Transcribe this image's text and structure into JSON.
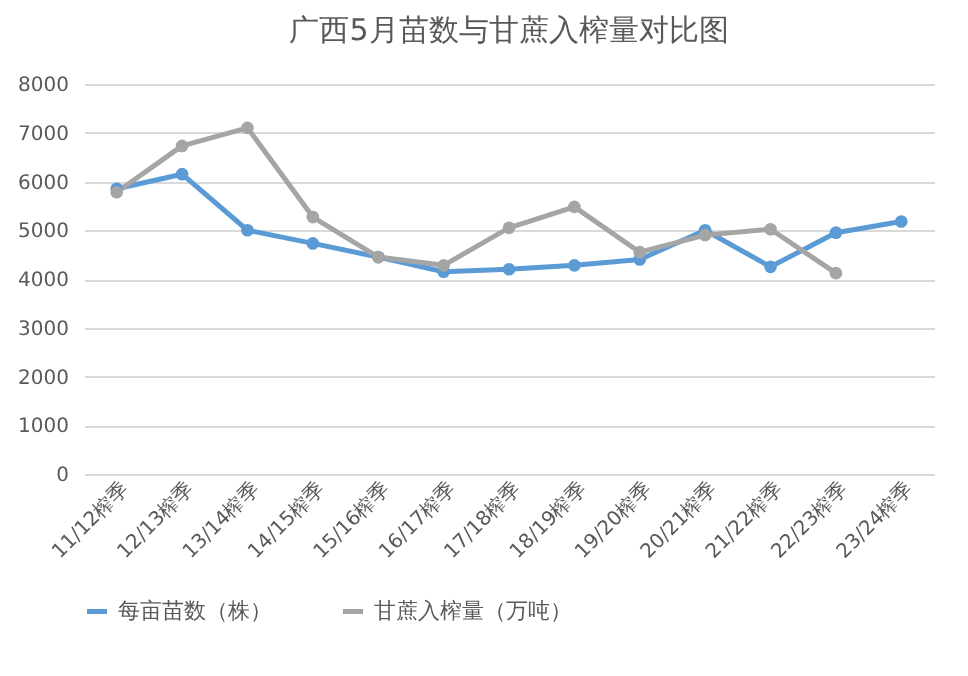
{
  "chart_data": {
    "type": "line",
    "title": "广西5月苗数与甘蔗入榨量对比图",
    "categories": [
      "11/12榨季",
      "12/13榨季",
      "13/14榨季",
      "14/15榨季",
      "15/16榨季",
      "16/17榨季",
      "17/18榨季",
      "18/19榨季",
      "19/20榨季",
      "20/21榨季",
      "21/22榨季",
      "22/23榨季",
      "23/24榨季"
    ],
    "series": [
      {
        "name": "每亩苗数（株）",
        "color": "#5b9bd5",
        "values": [
          5850,
          6150,
          5000,
          4730,
          4450,
          4150,
          4200,
          4280,
          4400,
          5000,
          4250,
          4950,
          5180
        ]
      },
      {
        "name": "甘蔗入榨量（万吨）",
        "color": "#a5a5a5",
        "values": [
          5780,
          6730,
          7100,
          5270,
          4450,
          4280,
          5050,
          5480,
          4550,
          4900,
          5020,
          4120,
          null
        ]
      }
    ],
    "ylim": [
      0,
      8000
    ],
    "yticks": [
      0,
      1000,
      2000,
      3000,
      4000,
      5000,
      6000,
      7000,
      8000
    ],
    "grid": "y",
    "legend": "bottom",
    "marker": "circle",
    "line_style": "solid"
  }
}
